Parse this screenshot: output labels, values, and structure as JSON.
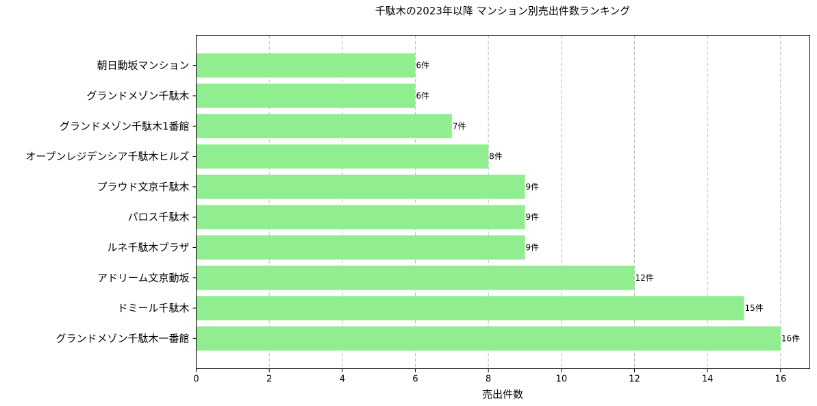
{
  "chart_data": {
    "type": "bar",
    "orientation": "horizontal",
    "title": "千駄木の2023年以降 マンション別売出件数ランキング",
    "xlabel": "売出件数",
    "ylabel": "",
    "xlim": [
      0,
      16.8
    ],
    "xticks": [
      0,
      2,
      4,
      6,
      8,
      10,
      12,
      14,
      16
    ],
    "grid": "x-dashed",
    "bar_color": "#90EE90",
    "categories": [
      "朝日動坂マンション",
      "グランドメゾン千駄木",
      "グランドメゾン千駄木1番館",
      "オープンレジデンシア千駄木ヒルズ",
      "プラウド文京千駄木",
      "パロス千駄木",
      "ルネ千駄木プラザ",
      "アドリーム文京動坂",
      "ドミール千駄木",
      "グランドメゾン千駄木一番館"
    ],
    "values": [
      6,
      6,
      7,
      8,
      9,
      9,
      9,
      12,
      15,
      16
    ],
    "data_labels": [
      "6件",
      "6件",
      "7件",
      "8件",
      "9件",
      "9件",
      "9件",
      "12件",
      "15件",
      "16件"
    ]
  }
}
